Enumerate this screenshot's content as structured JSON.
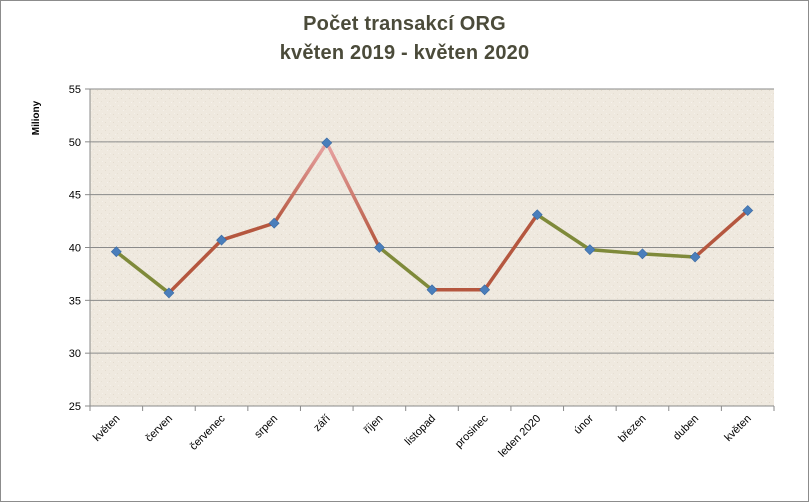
{
  "chart_data": {
    "type": "line",
    "title": "Počet transakcí ORG",
    "subtitle": "květen  2019 - květen 2020",
    "ylabel": "Miliony",
    "xlabel": "",
    "ylim": [
      25,
      55
    ],
    "yticks": [
      25,
      30,
      35,
      40,
      45,
      50,
      55
    ],
    "grid": true,
    "legend": "none",
    "categories": [
      "květen",
      "červen",
      "červenec",
      "srpen",
      "září",
      "říjen",
      "listopad",
      "prosinec",
      "leden 2020",
      "únor",
      "březen",
      "duben",
      "květen"
    ],
    "series": [
      {
        "values": [
          39.6,
          35.7,
          40.7,
          42.3,
          49.9,
          40.0,
          36.0,
          36.0,
          43.1,
          39.8,
          39.4,
          39.1,
          43.5
        ]
      }
    ],
    "colors": {
      "decrease_segment": "#7f8a3a",
      "increase_segment": "#b5573f",
      "peak_segment_light": "#e39a99",
      "marker": "#4a7ebb",
      "plot_background": "#efe9df",
      "gridline": "#8a8a8a"
    }
  }
}
